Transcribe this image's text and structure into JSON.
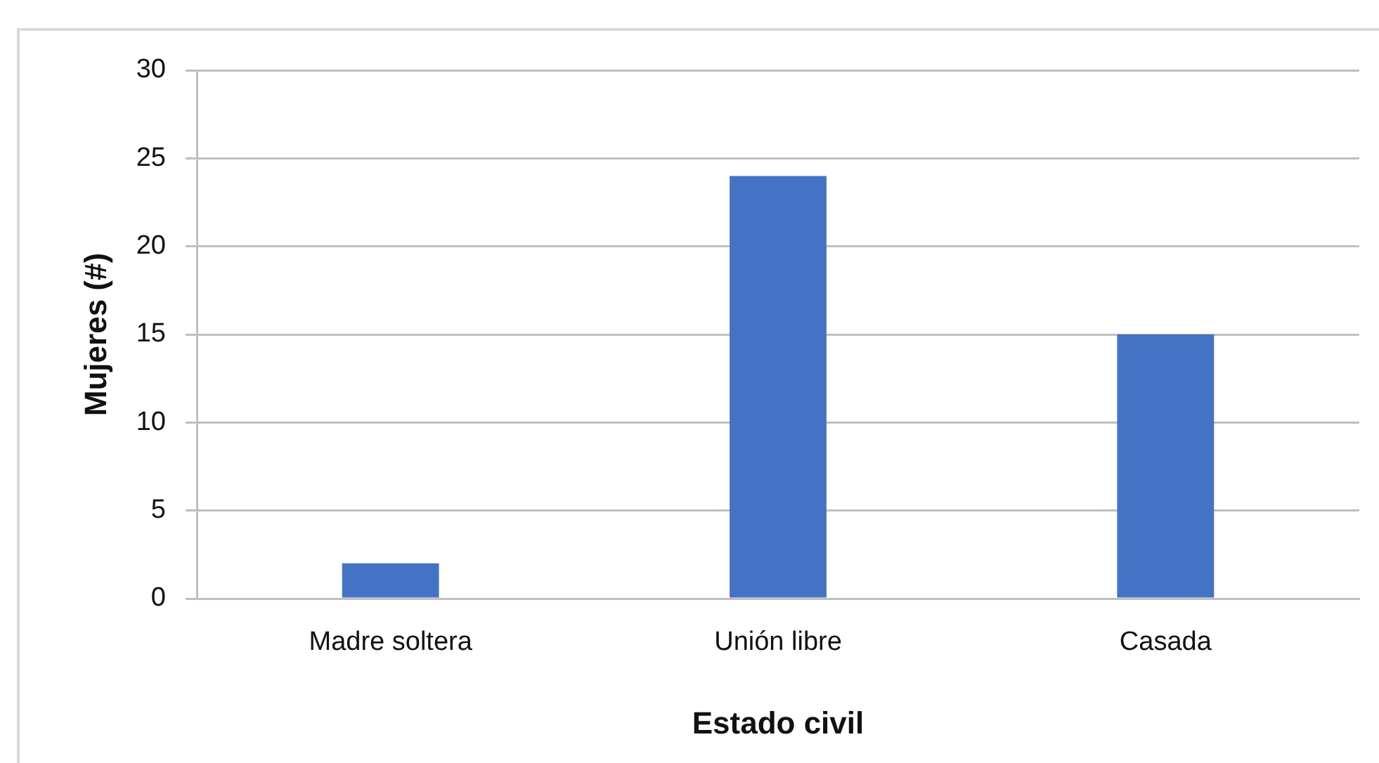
{
  "chart_data": {
    "type": "bar",
    "xlabel": "Estado civil",
    "ylabel": "Mujeres (#)",
    "categories": [
      "Madre soltera",
      "Unión libre",
      "Casada"
    ],
    "values": [
      2,
      24,
      15
    ],
    "color": "#4472c4",
    "ylim": [
      0,
      30
    ],
    "yticks": [
      0,
      5,
      10,
      15,
      20,
      25,
      30
    ],
    "grid": "y"
  }
}
